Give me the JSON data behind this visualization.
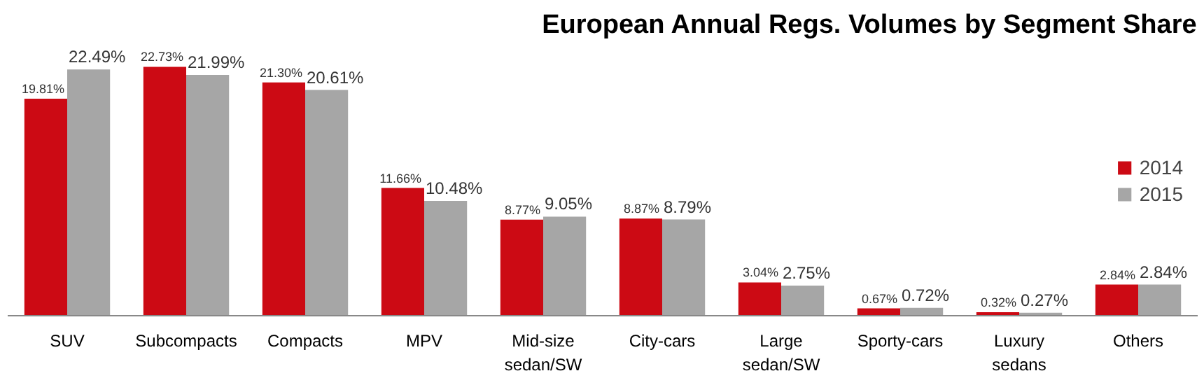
{
  "chart_data": {
    "type": "bar",
    "title": "European Annual Regs. Volumes by Segment Share",
    "categories": [
      "SUV",
      "Subcompacts",
      "Compacts",
      "MPV",
      "Mid-size\nsedan/SW",
      "City-cars",
      "Large\nsedan/SW",
      "Sporty-cars",
      "Luxury\nsedans",
      "Others"
    ],
    "series": [
      {
        "name": "2014",
        "color": "#cc0a14",
        "values": [
          19.81,
          22.73,
          21.3,
          11.66,
          8.77,
          8.87,
          3.04,
          0.67,
          0.32,
          2.84
        ],
        "value_labels": [
          "19.81%",
          "22.73%",
          "21.30%",
          "11.66%",
          "8.77%",
          "8.87%",
          "3.04%",
          "0.67%",
          "0.32%",
          "2.84%"
        ]
      },
      {
        "name": "2015",
        "color": "#a6a6a6",
        "values": [
          22.49,
          21.99,
          20.61,
          10.48,
          9.05,
          8.79,
          2.75,
          0.72,
          0.27,
          2.84
        ],
        "value_labels": [
          "22.49%",
          "21.99%",
          "20.61%",
          "10.48%",
          "9.05%",
          "8.79%",
          "2.75%",
          "0.72%",
          "0.27%",
          "2.84%"
        ]
      }
    ],
    "legend": "right",
    "grid": false
  }
}
